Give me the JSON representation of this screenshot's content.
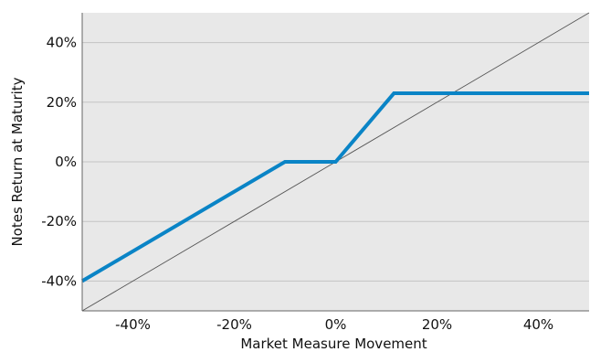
{
  "chart_data": {
    "type": "line",
    "title": "",
    "xlabel": "Market Measure Movement",
    "ylabel": "Notes Return at Maturity",
    "xlim": [
      -50,
      50
    ],
    "ylim": [
      -50,
      50
    ],
    "x_ticks": [
      -40,
      -20,
      0,
      20,
      40
    ],
    "y_ticks": [
      -40,
      -20,
      0,
      20,
      40
    ],
    "x_tick_labels": [
      "-40%",
      "-20%",
      "0%",
      "20%",
      "40%"
    ],
    "y_tick_labels": [
      "-40%",
      "-20%",
      "0%",
      "20%",
      "40%"
    ],
    "grid": true,
    "plot_background": "#e8e8e8",
    "series": [
      {
        "color": "#0a84c6",
        "points": [
          {
            "x": -50,
            "y": -40
          },
          {
            "x": -10,
            "y": 0
          },
          {
            "x": 0,
            "y": 0
          },
          {
            "x": 11.5,
            "y": 23
          },
          {
            "x": 50,
            "y": 23
          }
        ]
      },
      {
        "color": "#555555",
        "points": [
          {
            "x": -50,
            "y": -50
          },
          {
            "x": 50,
            "y": 50
          }
        ]
      }
    ]
  }
}
